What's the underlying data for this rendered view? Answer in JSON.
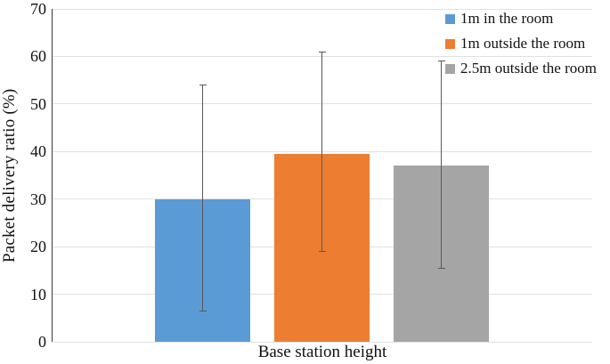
{
  "chart_data": {
    "type": "bar",
    "title": "",
    "xlabel": "Base station height",
    "ylabel": "Packet delivery ratio (%)",
    "ylim": [
      0,
      70
    ],
    "yticks": [
      0,
      10,
      20,
      30,
      40,
      50,
      60,
      70
    ],
    "grid": true,
    "legend_position": "top-right",
    "categories": [
      "Base station height"
    ],
    "series": [
      {
        "name": "1m in the room",
        "color": "#5B9BD5",
        "value": 30,
        "error_low": 6.5,
        "error_high": 54
      },
      {
        "name": "1m outside the room",
        "color": "#ED7D31",
        "value": 39.5,
        "error_low": 19,
        "error_high": 61
      },
      {
        "name": "2.5m outside the room",
        "color": "#A5A5A5",
        "value": 37,
        "error_low": 15.4,
        "error_high": 59
      }
    ]
  },
  "colors": {
    "background": "#FFFFFF",
    "gridline": "#E1E1E1",
    "axis_line": "#3A3A3A",
    "error_bar": "#595959",
    "text": "#111111"
  }
}
